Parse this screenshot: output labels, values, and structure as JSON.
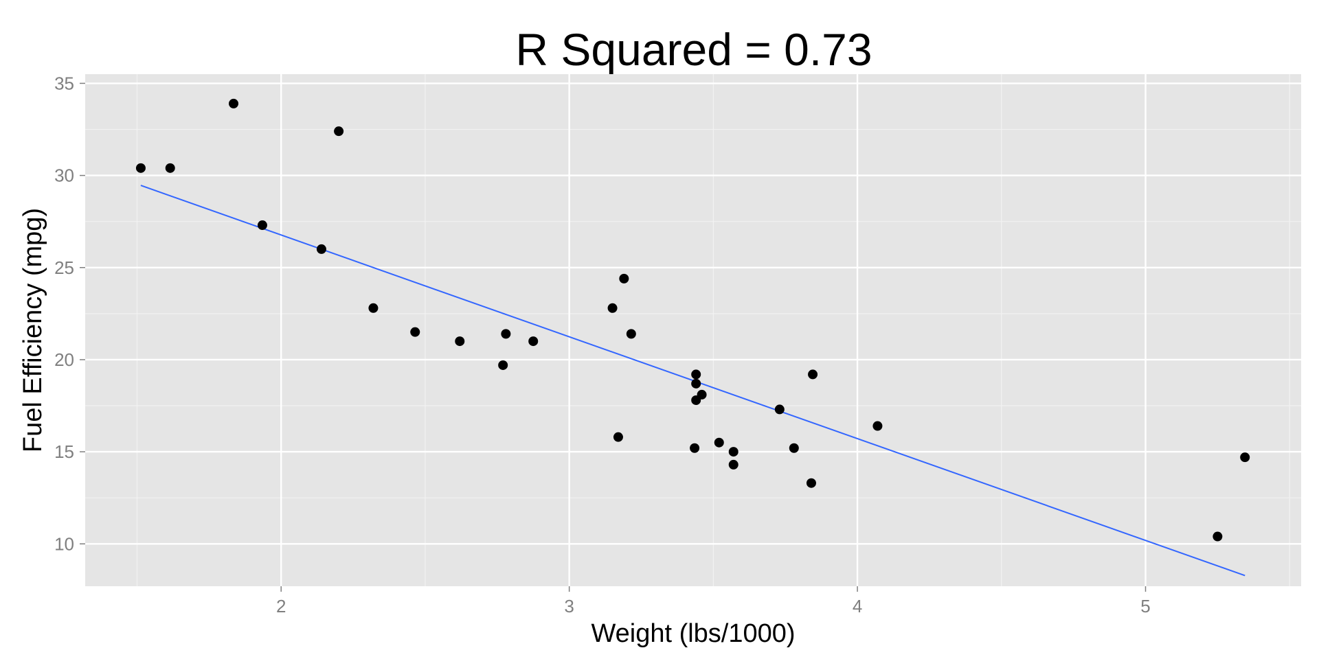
{
  "chart_data": {
    "type": "scatter",
    "title": "R Squared = 0.73",
    "xlabel": "Weight (lbs/1000)",
    "ylabel": "Fuel Efficiency (mpg)",
    "xlim": [
      1.32,
      5.54
    ],
    "ylim": [
      7.7,
      35.5
    ],
    "x_ticks": [
      2,
      3,
      4,
      5
    ],
    "y_ticks": [
      10,
      15,
      20,
      25,
      30,
      35
    ],
    "grid": true,
    "legend": "none",
    "series": [
      {
        "points": [
          [
            2.62,
            21.0
          ],
          [
            2.875,
            21.0
          ],
          [
            2.32,
            22.8
          ],
          [
            3.215,
            21.4
          ],
          [
            3.44,
            18.7
          ],
          [
            3.46,
            18.1
          ],
          [
            3.57,
            14.3
          ],
          [
            3.19,
            24.4
          ],
          [
            3.15,
            22.8
          ],
          [
            3.44,
            19.2
          ],
          [
            3.44,
            17.8
          ],
          [
            4.07,
            16.4
          ],
          [
            3.73,
            17.3
          ],
          [
            3.78,
            15.2
          ],
          [
            5.25,
            10.4
          ],
          [
            5.345,
            14.7
          ],
          [
            2.2,
            32.4
          ],
          [
            1.615,
            30.4
          ],
          [
            1.835,
            33.9
          ],
          [
            2.465,
            21.5
          ],
          [
            3.52,
            15.5
          ],
          [
            3.435,
            15.2
          ],
          [
            3.84,
            13.3
          ],
          [
            3.845,
            19.2
          ],
          [
            1.935,
            27.3
          ],
          [
            2.14,
            26.0
          ],
          [
            1.513,
            30.4
          ],
          [
            3.17,
            15.8
          ],
          [
            2.77,
            19.7
          ],
          [
            3.57,
            15.0
          ],
          [
            2.78,
            21.4
          ]
        ],
        "color": "#000000"
      }
    ],
    "fit_line": {
      "x": [
        1.513,
        5.345
      ],
      "y": [
        29.46,
        8.28
      ],
      "color": "#3366ff"
    },
    "colors": {
      "panel": "#e5e5e5",
      "grid_major": "#ffffff",
      "grid_minor": "#f2f2f2",
      "tick_text": "#7f7f7f"
    }
  }
}
